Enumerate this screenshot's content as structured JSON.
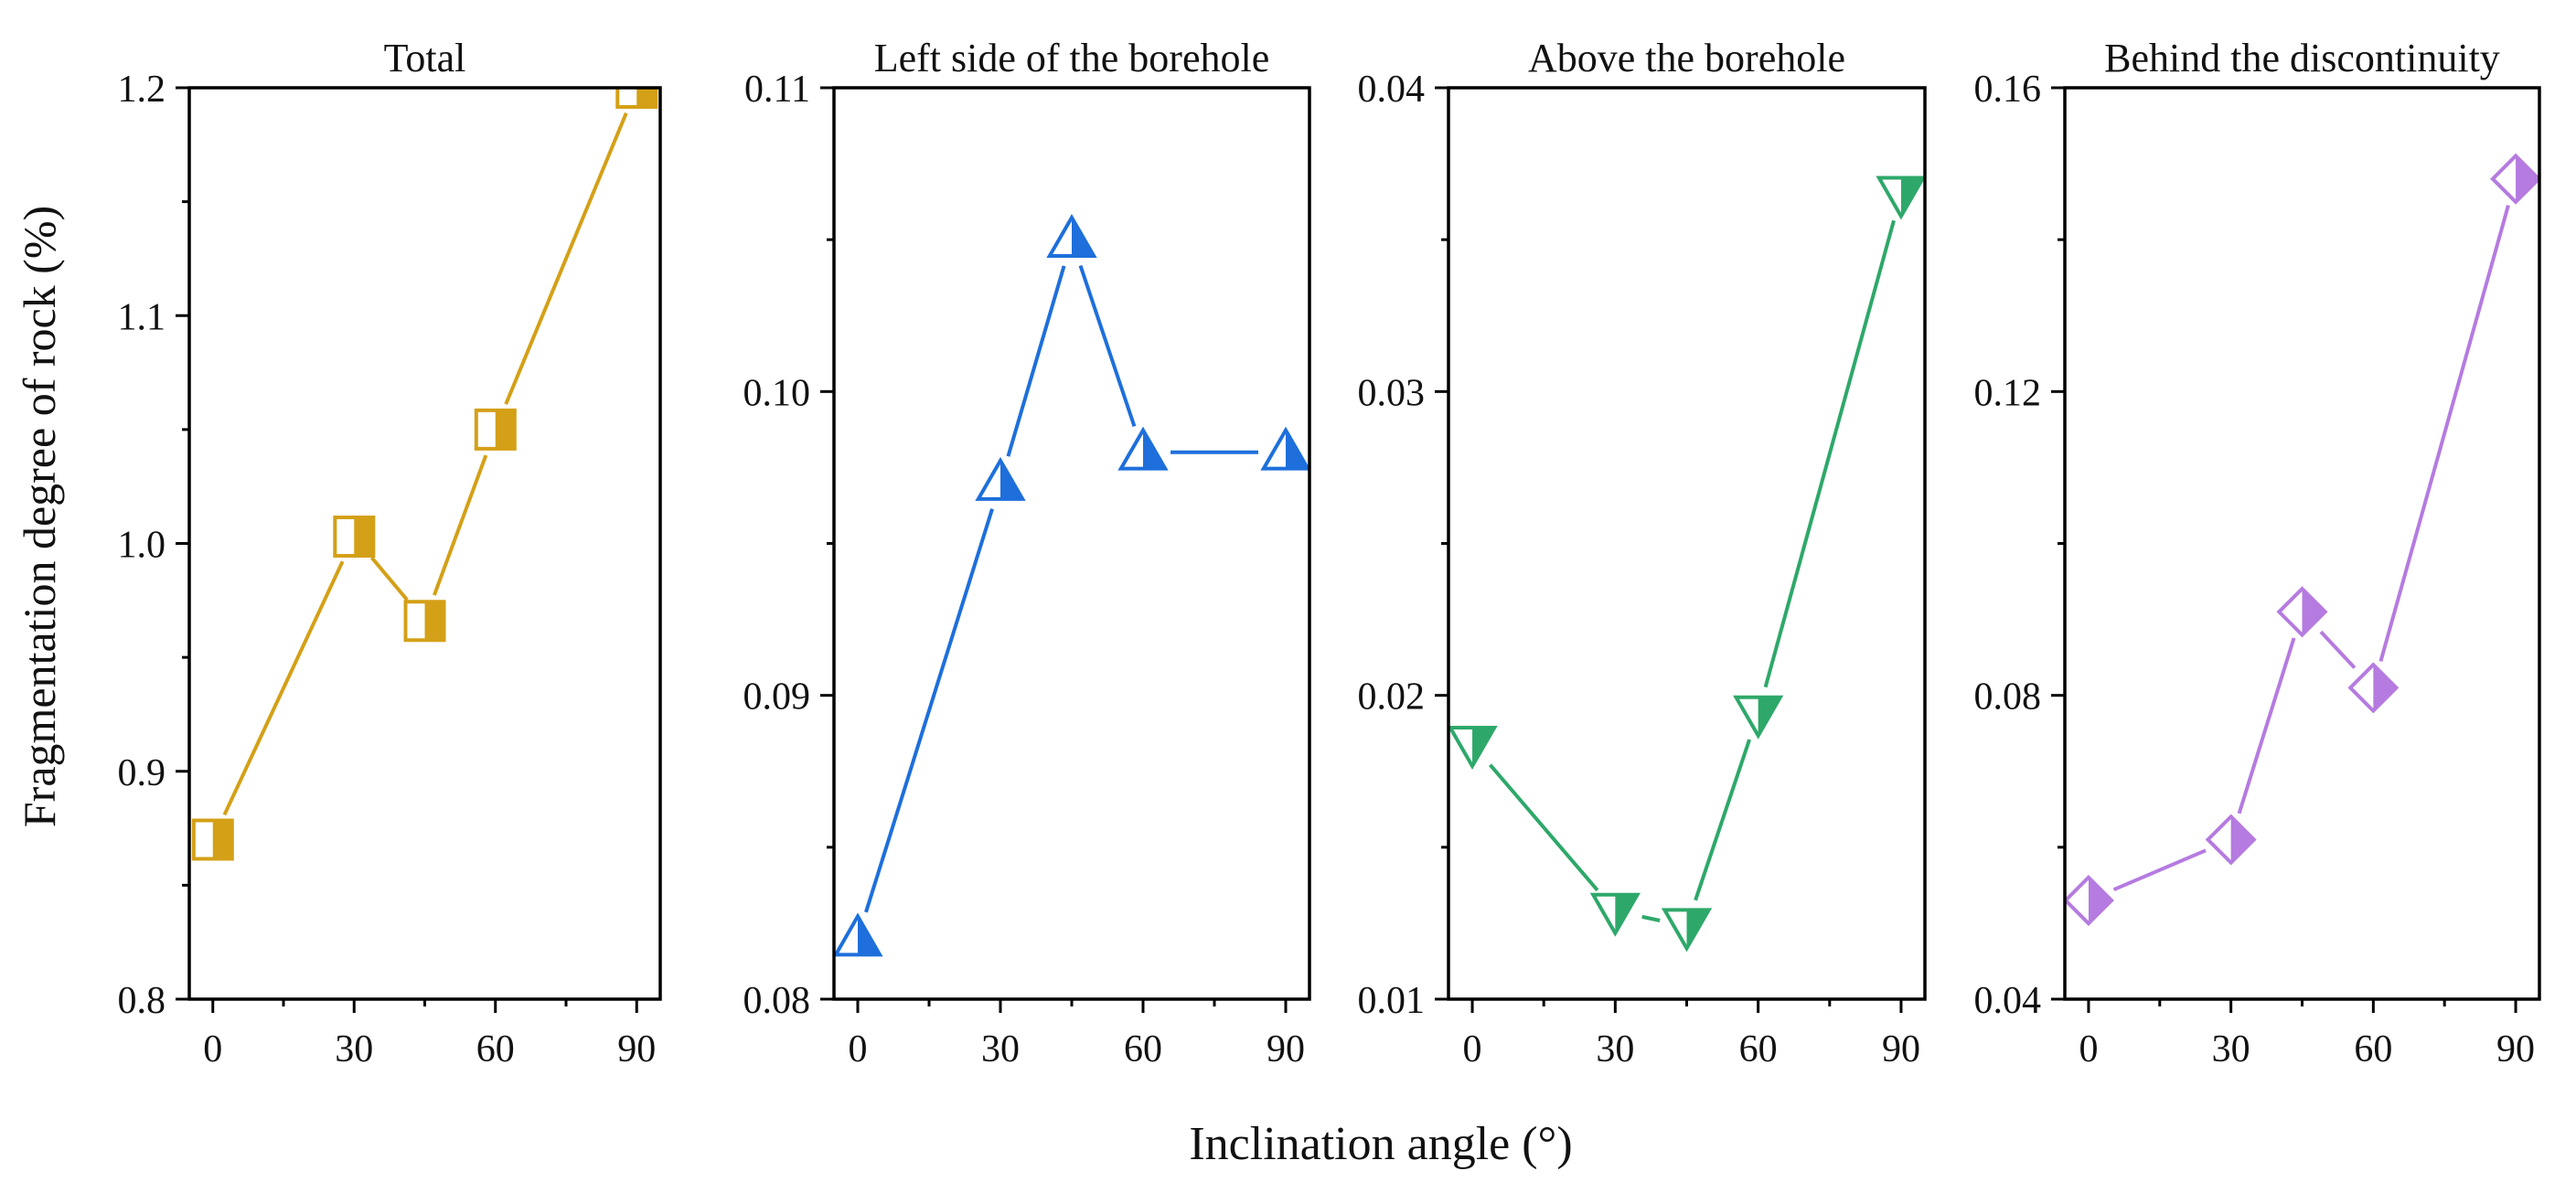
{
  "figure": {
    "ylabel": "Fragmentation degree of rock (%)",
    "xlabel": "Inclination angle (°)"
  },
  "chart_data": [
    {
      "type": "line",
      "title": "Total",
      "color": "#D4A017",
      "marker": "square",
      "x": [
        0,
        30,
        45,
        60,
        90
      ],
      "values": [
        0.87,
        1.003,
        0.966,
        1.05,
        1.2
      ],
      "xlim": [
        -5,
        95
      ],
      "ylim": [
        0.8,
        1.2
      ],
      "xticks": [
        "0",
        "30",
        "60",
        "90"
      ],
      "yticks": [
        "0.8",
        "0.9",
        "1.0",
        "1.1",
        "1.2"
      ]
    },
    {
      "type": "line",
      "title": "Left side of the borehole",
      "color": "#1E6FDB",
      "marker": "triangle-up",
      "x": [
        0,
        30,
        45,
        60,
        90
      ],
      "values": [
        0.082,
        0.097,
        0.105,
        0.098,
        0.098
      ],
      "xlim": [
        -5,
        95
      ],
      "ylim": [
        0.08,
        0.11
      ],
      "xticks": [
        "0",
        "30",
        "60",
        "90"
      ],
      "yticks": [
        "0.08",
        "0.09",
        "0.10",
        "0.11"
      ]
    },
    {
      "type": "line",
      "title": "Above the borehole",
      "color": "#2EA86A",
      "marker": "triangle-down",
      "x": [
        0,
        30,
        45,
        60,
        90
      ],
      "values": [
        0.0184,
        0.0129,
        0.0124,
        0.0194,
        0.0365
      ],
      "xlim": [
        -5,
        95
      ],
      "ylim": [
        0.01,
        0.04
      ],
      "xticks": [
        "0",
        "30",
        "60",
        "90"
      ],
      "yticks": [
        "0.01",
        "0.02",
        "0.03",
        "0.04"
      ]
    },
    {
      "type": "line",
      "title": "Behind the discontinuity",
      "color": "#B57BE0",
      "marker": "diamond",
      "x": [
        0,
        30,
        45,
        60,
        90
      ],
      "values": [
        0.053,
        0.061,
        0.091,
        0.081,
        0.148
      ],
      "xlim": [
        -5,
        95
      ],
      "ylim": [
        0.04,
        0.16
      ],
      "xticks": [
        "0",
        "30",
        "60",
        "90"
      ],
      "yticks": [
        "0.04",
        "0.08",
        "0.12",
        "0.16"
      ]
    }
  ]
}
